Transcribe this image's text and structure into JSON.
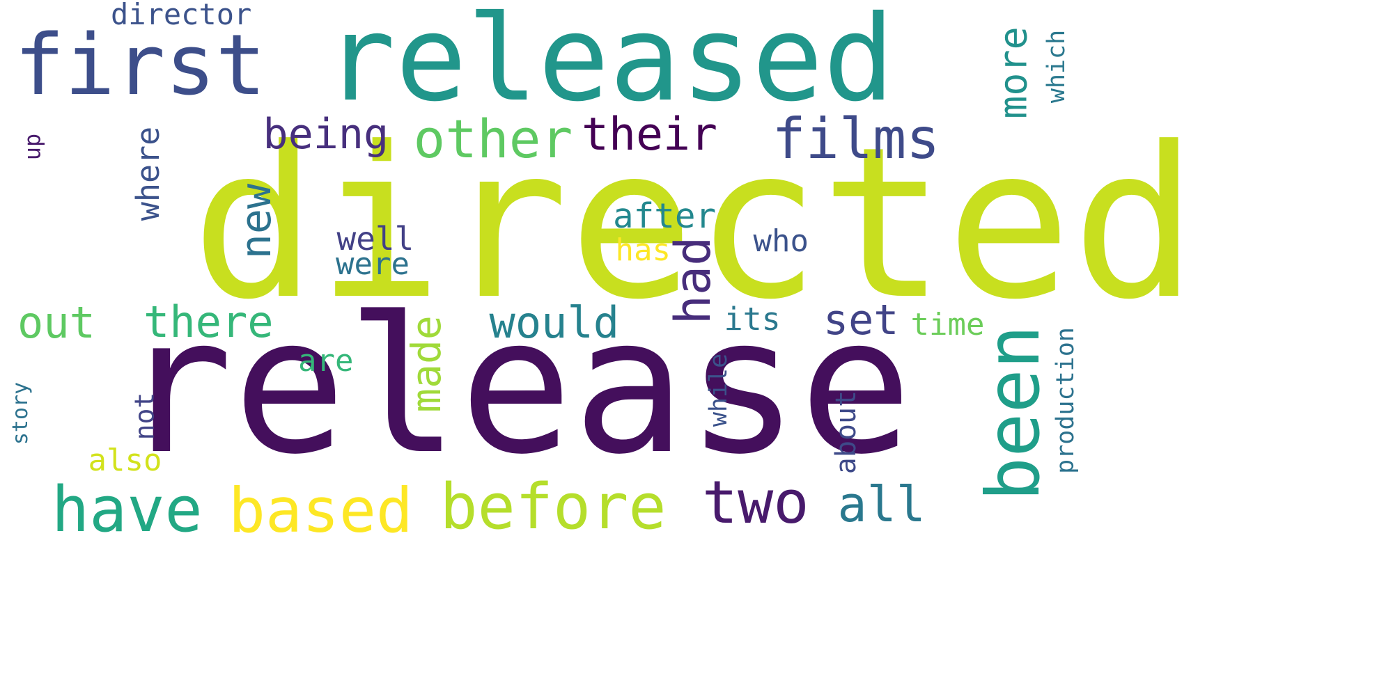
{
  "word_cloud": {
    "background": "#ffffff",
    "words": [
      {
        "key": "directed",
        "text": "directed",
        "color": "#c8df1f",
        "orientation": "horizontal"
      },
      {
        "key": "release",
        "text": "release",
        "color": "#440f5c",
        "orientation": "horizontal"
      },
      {
        "key": "released",
        "text": "released",
        "color": "#21968b",
        "orientation": "horizontal"
      },
      {
        "key": "first",
        "text": "first",
        "color": "#3d4e8a",
        "orientation": "horizontal"
      },
      {
        "key": "director",
        "text": "director",
        "color": "#3b528b",
        "orientation": "horizontal"
      },
      {
        "key": "being",
        "text": "being",
        "color": "#472f7d",
        "orientation": "horizontal"
      },
      {
        "key": "other",
        "text": "other",
        "color": "#5ec962",
        "orientation": "horizontal"
      },
      {
        "key": "their",
        "text": "their",
        "color": "#440154",
        "orientation": "horizontal"
      },
      {
        "key": "films",
        "text": "films",
        "color": "#3e4a89",
        "orientation": "horizontal"
      },
      {
        "key": "after",
        "text": "after",
        "color": "#23888e",
        "orientation": "horizontal"
      },
      {
        "key": "well",
        "text": "well",
        "color": "#424086",
        "orientation": "horizontal"
      },
      {
        "key": "were",
        "text": "were",
        "color": "#2c728e",
        "orientation": "horizontal"
      },
      {
        "key": "has",
        "text": "has",
        "color": "#fde725",
        "orientation": "horizontal"
      },
      {
        "key": "who",
        "text": "who",
        "color": "#3b528b",
        "orientation": "horizontal"
      },
      {
        "key": "out",
        "text": "out",
        "color": "#5ec962",
        "orientation": "horizontal"
      },
      {
        "key": "there",
        "text": "there",
        "color": "#35b779",
        "orientation": "horizontal"
      },
      {
        "key": "would",
        "text": "would",
        "color": "#26828e",
        "orientation": "horizontal"
      },
      {
        "key": "its",
        "text": "its",
        "color": "#2a788e",
        "orientation": "horizontal"
      },
      {
        "key": "set",
        "text": "set",
        "color": "#414487",
        "orientation": "horizontal"
      },
      {
        "key": "time",
        "text": "time",
        "color": "#6ccd5a",
        "orientation": "horizontal"
      },
      {
        "key": "are",
        "text": "are",
        "color": "#35b779",
        "orientation": "horizontal"
      },
      {
        "key": "also",
        "text": "also",
        "color": "#d2e21b",
        "orientation": "horizontal"
      },
      {
        "key": "have",
        "text": "have",
        "color": "#22a884",
        "orientation": "horizontal"
      },
      {
        "key": "based",
        "text": "based",
        "color": "#fde725",
        "orientation": "horizontal"
      },
      {
        "key": "before",
        "text": "before",
        "color": "#b5de2b",
        "orientation": "horizontal"
      },
      {
        "key": "two",
        "text": "two",
        "color": "#481a6c",
        "orientation": "horizontal"
      },
      {
        "key": "all",
        "text": "all",
        "color": "#2a788e",
        "orientation": "horizontal"
      },
      {
        "key": "up",
        "text": "up",
        "color": "#481a6c",
        "orientation": "vertical"
      },
      {
        "key": "where",
        "text": "where",
        "color": "#3b528b",
        "orientation": "vertical"
      },
      {
        "key": "new",
        "text": "new",
        "color": "#2c728e",
        "orientation": "vertical"
      },
      {
        "key": "had",
        "text": "had",
        "color": "#472d7b",
        "orientation": "vertical"
      },
      {
        "key": "made",
        "text": "made",
        "color": "#a0da39",
        "orientation": "vertical"
      },
      {
        "key": "been",
        "text": "been",
        "color": "#1f9e89",
        "orientation": "vertical"
      },
      {
        "key": "more",
        "text": "more",
        "color": "#21918c",
        "orientation": "vertical"
      },
      {
        "key": "which",
        "text": "which",
        "color": "#2a788e",
        "orientation": "vertical"
      },
      {
        "key": "production",
        "text": "production",
        "color": "#2c728e",
        "orientation": "vertical"
      },
      {
        "key": "about",
        "text": "about",
        "color": "#3e4a89",
        "orientation": "vertical"
      },
      {
        "key": "while",
        "text": "while",
        "color": "#3b528b",
        "orientation": "vertical"
      },
      {
        "key": "not",
        "text": "not",
        "color": "#414487",
        "orientation": "vertical"
      },
      {
        "key": "story",
        "text": "story",
        "color": "#2c728e",
        "orientation": "vertical"
      }
    ]
  }
}
